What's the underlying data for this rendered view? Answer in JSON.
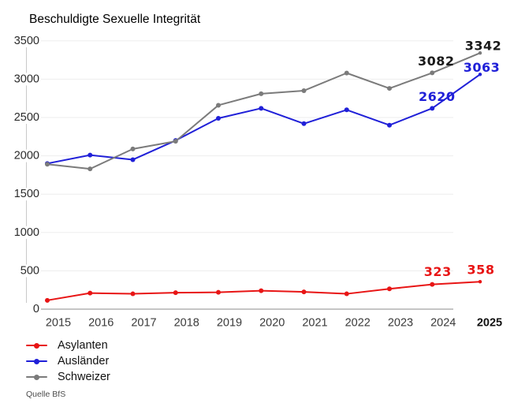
{
  "source": "Quelle BfS",
  "chart_data": {
    "type": "line",
    "title": "Beschuldigte Sexuelle Integrität",
    "x": [
      2015,
      2016,
      2017,
      2018,
      2019,
      2020,
      2021,
      2022,
      2023,
      2024,
      2025
    ],
    "series": [
      {
        "name": "Asylanten",
        "color": "#e81515",
        "values": [
          115,
          210,
          200,
          215,
          220,
          240,
          225,
          200,
          265,
          323,
          358
        ]
      },
      {
        "name": "Ausländer",
        "color": "#2020d8",
        "values": [
          1900,
          2010,
          1950,
          2200,
          2490,
          2620,
          2420,
          2600,
          2400,
          2620,
          3063
        ]
      },
      {
        "name": "Schweizer",
        "color": "#7b7b7b",
        "values": [
          1890,
          1830,
          2090,
          2190,
          2660,
          2810,
          2850,
          3080,
          2880,
          3082,
          3342
        ]
      }
    ],
    "ylim": [
      0,
      3500
    ],
    "yticks": [
      0,
      500,
      1000,
      1500,
      2000,
      2500,
      3000,
      3500
    ],
    "grid": true,
    "legend_position": "bottom-left",
    "xlabel": "",
    "ylabel": "",
    "last_x_label_bold": "2025",
    "annotations": [
      {
        "series": "Schweizer",
        "year": 2024,
        "text": "3082",
        "color": "#1a1a1a"
      },
      {
        "series": "Schweizer",
        "year": 2025,
        "text": "3342",
        "color": "#1a1a1a"
      },
      {
        "series": "Ausländer",
        "year": 2024,
        "text": "2620",
        "color": "#2020d8"
      },
      {
        "series": "Ausländer",
        "year": 2025,
        "text": "3063",
        "color": "#2020d8"
      },
      {
        "series": "Asylanten",
        "year": 2024,
        "text": "323",
        "color": "#e81515"
      },
      {
        "series": "Asylanten",
        "year": 2025,
        "text": "358",
        "color": "#e81515"
      }
    ]
  }
}
